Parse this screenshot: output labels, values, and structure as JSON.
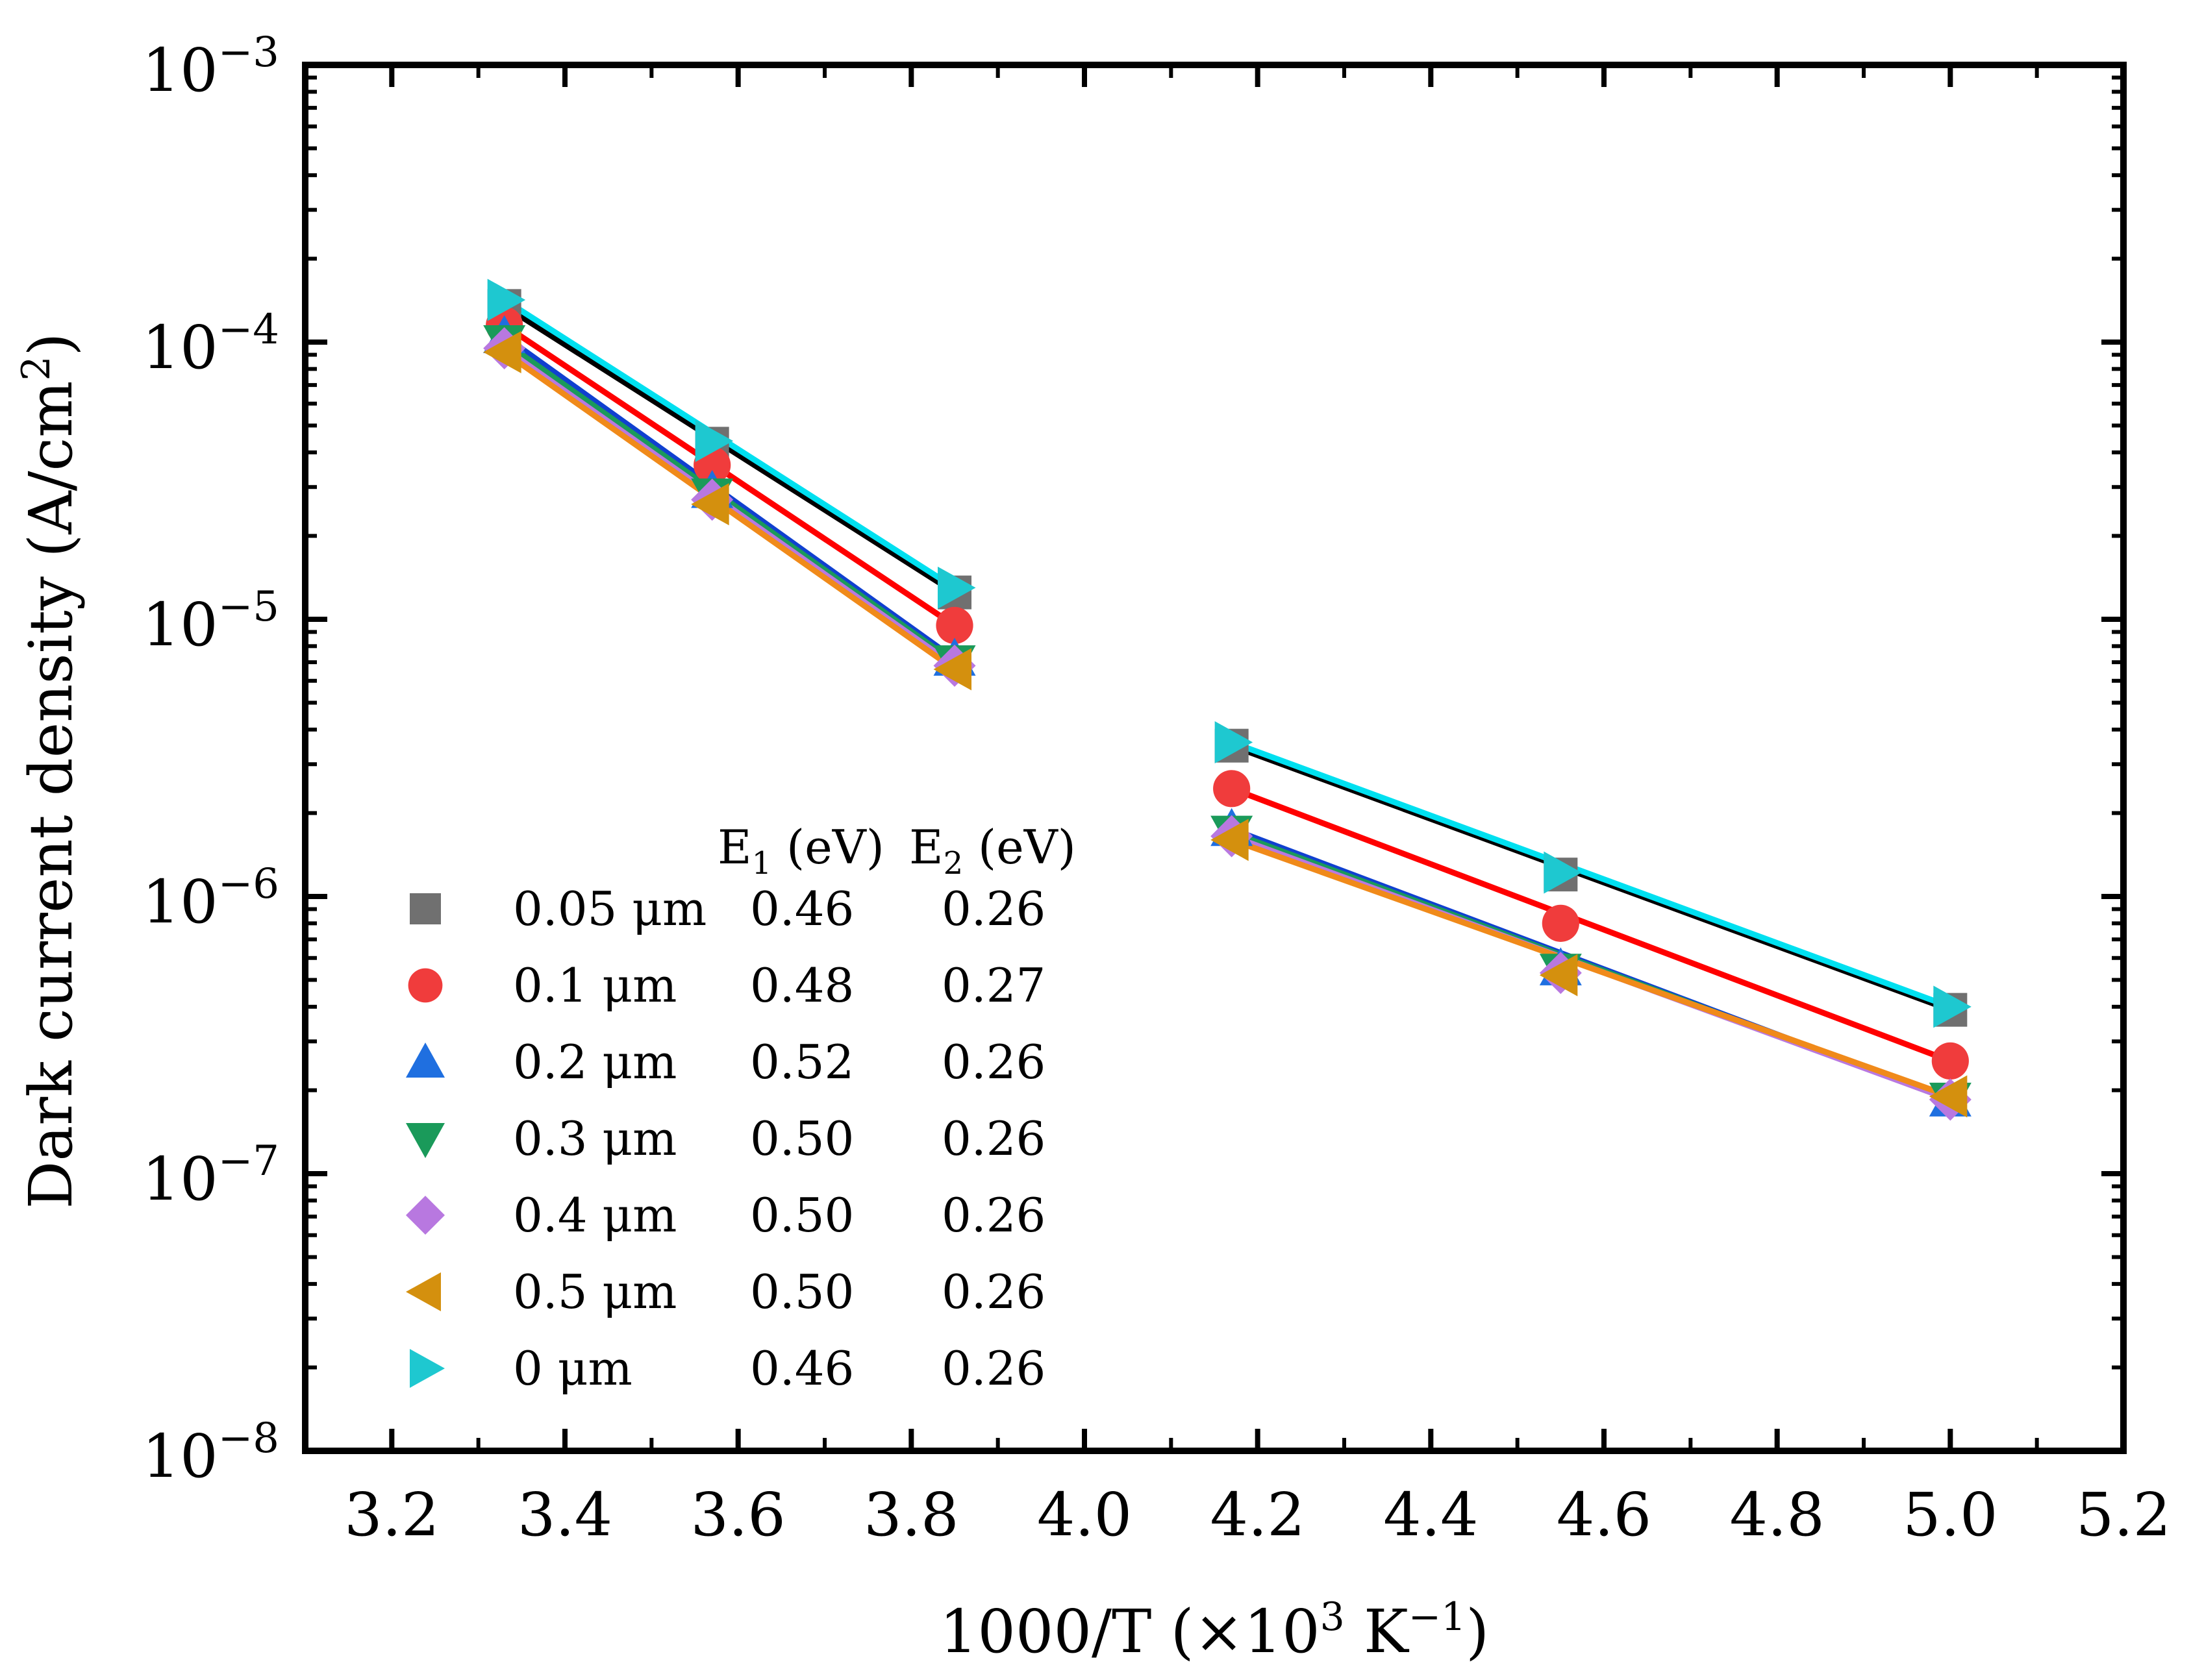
{
  "chart_data": {
    "type": "scatter",
    "title": "",
    "xlabel": "1000/T (×10³ K⁻¹)",
    "xlabel_parts": {
      "base": "1000/T (×10",
      "sup1": "3",
      "mid": " K",
      "sup2": "−1",
      "end": ")"
    },
    "ylabel": "Dark current density (A/cm²)",
    "ylabel_parts": {
      "base": "Dark current density (A/cm",
      "sup": "2",
      "end": ")"
    },
    "xlim": [
      3.1,
      5.2
    ],
    "ylim_log10": [
      -8,
      -3
    ],
    "xticks": [
      "3.2",
      "3.4",
      "3.6",
      "3.8",
      "4.0",
      "4.2",
      "4.4",
      "4.6",
      "4.8",
      "5.0",
      "5.2"
    ],
    "yticks": [
      {
        "base": "10",
        "exp": "−3",
        "value": -3
      },
      {
        "base": "10",
        "exp": "−4",
        "value": -4
      },
      {
        "base": "10",
        "exp": "−5",
        "value": -5
      },
      {
        "base": "10",
        "exp": "−6",
        "value": -6
      },
      {
        "base": "10",
        "exp": "−7",
        "value": -7
      },
      {
        "base": "10",
        "exp": "−8",
        "value": -8
      }
    ],
    "legend": {
      "position": "lower-left",
      "header_e1": {
        "base": "E",
        "sub": "1",
        "unit": " (eV)"
      },
      "header_e2": {
        "base": "E",
        "sub": "2",
        "unit": " (eV)"
      }
    },
    "series": [
      {
        "name": "0.05 μm",
        "e1": "0.46",
        "e2": "0.26",
        "marker": "square",
        "color": "#707070",
        "line_color": "#000000",
        "x": [
          3.33,
          3.57,
          3.85,
          4.17,
          4.55,
          5.0
        ],
        "y": [
          0.000135,
          4.3e-05,
          1.25e-05,
          3.5e-06,
          1.2e-06,
          3.9e-07
        ]
      },
      {
        "name": "0.1 μm",
        "e1": "0.48",
        "e2": "0.27",
        "marker": "circle",
        "color": "#f03c3c",
        "line_color": "#ff0000",
        "x": [
          3.33,
          3.57,
          3.85,
          4.17,
          4.55,
          5.0
        ],
        "y": [
          0.000115,
          3.6e-05,
          9.5e-06,
          2.45e-06,
          8e-07,
          2.55e-07
        ]
      },
      {
        "name": "0.2 μm",
        "e1": "0.52",
        "e2": "0.26",
        "marker": "triangle-up",
        "color": "#1f6fe0",
        "line_color": "#1040d0",
        "x": [
          3.33,
          3.57,
          3.85,
          4.17,
          4.55,
          5.0
        ],
        "y": [
          0.000105,
          2.9e-05,
          7.2e-06,
          1.75e-06,
          5.5e-07,
          1.85e-07
        ]
      },
      {
        "name": "0.3 μm",
        "e1": "0.50",
        "e2": "0.26",
        "marker": "triangle-down",
        "color": "#1a9a5a",
        "line_color": "#1a9a5a",
        "x": [
          3.33,
          3.57,
          3.85,
          4.17,
          4.55,
          5.0
        ],
        "y": [
          0.0001,
          2.8e-05,
          7e-06,
          1.7e-06,
          5.4e-07,
          1.85e-07
        ]
      },
      {
        "name": "0.4 μm",
        "e1": "0.50",
        "e2": "0.26",
        "marker": "diamond",
        "color": "#b878e0",
        "line_color": "#b878e0",
        "x": [
          3.33,
          3.57,
          3.85,
          4.17,
          4.55,
          5.0
        ],
        "y": [
          9.5e-05,
          2.7e-05,
          6.8e-06,
          1.65e-06,
          5.3e-07,
          1.85e-07
        ]
      },
      {
        "name": "0.5 μm",
        "e1": "0.50",
        "e2": "0.26",
        "marker": "triangle-left",
        "color": "#d4900e",
        "line_color": "#f08a1a",
        "x": [
          3.33,
          3.57,
          3.85,
          4.17,
          4.55,
          5.0
        ],
        "y": [
          9.2e-05,
          2.6e-05,
          6.6e-06,
          1.6e-06,
          5.2e-07,
          1.9e-07
        ]
      },
      {
        "name": "0 μm",
        "e1": "0.46",
        "e2": "0.26",
        "marker": "triangle-right",
        "color": "#1ec8d0",
        "line_color": "#00e0f0",
        "x": [
          3.33,
          3.57,
          3.85,
          4.17,
          4.55,
          5.0
        ],
        "y": [
          0.000142,
          4.4e-05,
          1.3e-05,
          3.6e-06,
          1.22e-06,
          4e-07
        ]
      }
    ]
  }
}
